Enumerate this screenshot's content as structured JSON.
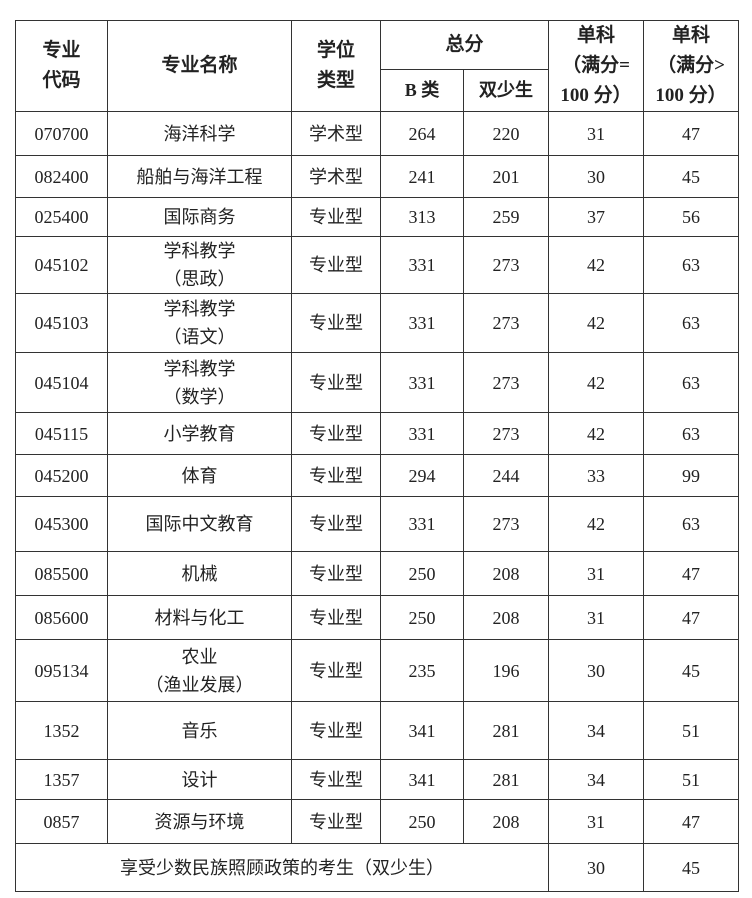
{
  "header": {
    "code": [
      "专业",
      "代码"
    ],
    "name": "专业名称",
    "degree": [
      "学位",
      "类型"
    ],
    "total": "总分",
    "total_b": "B 类",
    "total_sss": "双少生",
    "single100": [
      "单科",
      "（满分=",
      "100 分）"
    ],
    "single_gt100": [
      "单科",
      "（满分>",
      "100 分）"
    ]
  },
  "rows": [
    {
      "code": "070700",
      "name": [
        "海洋科学"
      ],
      "type": "学术型",
      "b": "264",
      "sss": "220",
      "s1": "31",
      "s2": "47"
    },
    {
      "code": "082400",
      "name": [
        "船舶与海洋工程"
      ],
      "type": "学术型",
      "b": "241",
      "sss": "201",
      "s1": "30",
      "s2": "45"
    },
    {
      "code": "025400",
      "name": [
        "国际商务"
      ],
      "type": "专业型",
      "b": "313",
      "sss": "259",
      "s1": "37",
      "s2": "56"
    },
    {
      "code": "045102",
      "name": [
        "学科教学",
        "（思政）"
      ],
      "type": "专业型",
      "b": "331",
      "sss": "273",
      "s1": "42",
      "s2": "63"
    },
    {
      "code": "045103",
      "name": [
        "学科教学",
        "（语文）"
      ],
      "type": "专业型",
      "b": "331",
      "sss": "273",
      "s1": "42",
      "s2": "63"
    },
    {
      "code": "045104",
      "name": [
        "学科教学",
        "（数学）"
      ],
      "type": "专业型",
      "b": "331",
      "sss": "273",
      "s1": "42",
      "s2": "63"
    },
    {
      "code": "045115",
      "name": [
        "小学教育"
      ],
      "type": "专业型",
      "b": "331",
      "sss": "273",
      "s1": "42",
      "s2": "63"
    },
    {
      "code": "045200",
      "name": [
        "体育"
      ],
      "type": "专业型",
      "b": "294",
      "sss": "244",
      "s1": "33",
      "s2": "99"
    },
    {
      "code": "045300",
      "name": [
        "国际中文教育"
      ],
      "type": "专业型",
      "b": "331",
      "sss": "273",
      "s1": "42",
      "s2": "63"
    },
    {
      "code": "085500",
      "name": [
        "机械"
      ],
      "type": "专业型",
      "b": "250",
      "sss": "208",
      "s1": "31",
      "s2": "47"
    },
    {
      "code": "085600",
      "name": [
        "材料与化工"
      ],
      "type": "专业型",
      "b": "250",
      "sss": "208",
      "s1": "31",
      "s2": "47"
    },
    {
      "code": "095134",
      "name": [
        "农业",
        "（渔业发展）"
      ],
      "type": "专业型",
      "b": "235",
      "sss": "196",
      "s1": "30",
      "s2": "45"
    },
    {
      "code": "1352",
      "name": [
        "音乐"
      ],
      "type": "专业型",
      "b": "341",
      "sss": "281",
      "s1": "34",
      "s2": "51"
    },
    {
      "code": "1357",
      "name": [
        "设计"
      ],
      "type": "专业型",
      "b": "341",
      "sss": "281",
      "s1": "34",
      "s2": "51"
    },
    {
      "code": "0857",
      "name": [
        "资源与环境"
      ],
      "type": "专业型",
      "b": "250",
      "sss": "208",
      "s1": "31",
      "s2": "47"
    }
  ],
  "footer": {
    "label": "享受少数民族照顾政策的考生（双少生）",
    "s1": "30",
    "s2": "45"
  }
}
